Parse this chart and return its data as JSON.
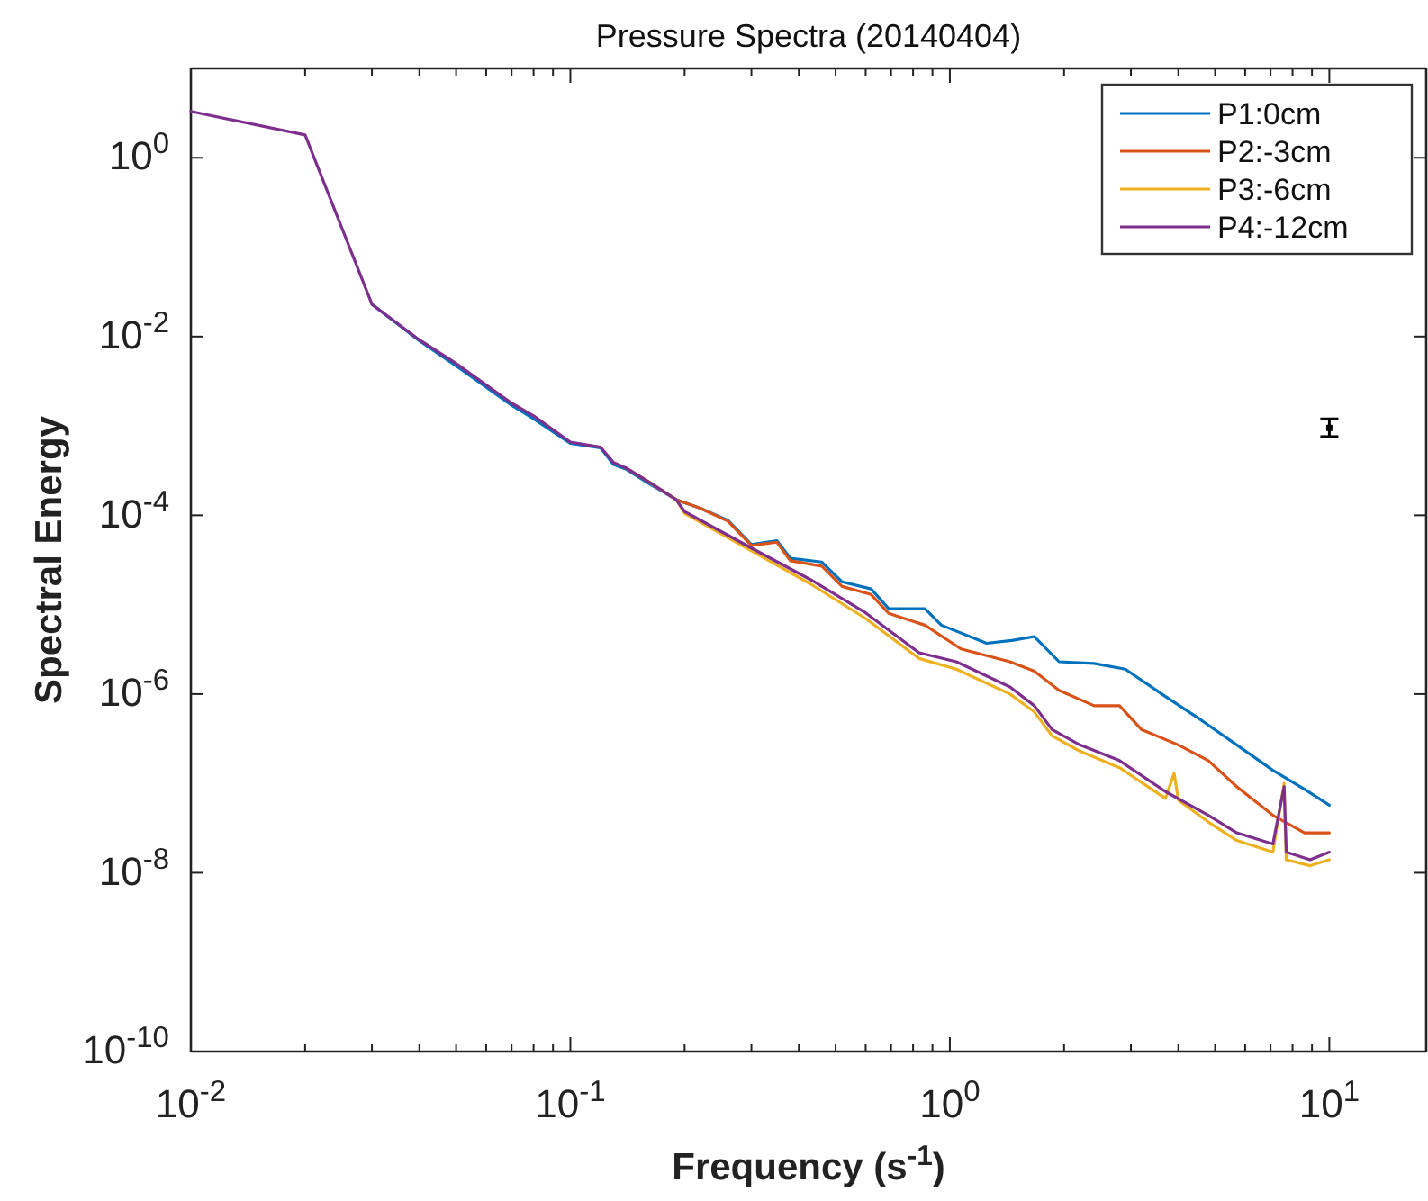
{
  "chart_data": {
    "type": "line",
    "title": "Pressure Spectra (20140404)",
    "xlabel": "Frequency (s$^{-1}$)",
    "ylabel": "Spectral Energy",
    "log": "xy",
    "xlim": [
      0.01,
      18
    ],
    "ylim": [
      1e-10,
      10
    ],
    "xticks": [
      {
        "value": 0.01,
        "label": "10$^{-2}$"
      },
      {
        "value": 0.02,
        "label": null
      },
      {
        "value": 0.03,
        "label": null
      },
      {
        "value": 0.04,
        "label": null
      },
      {
        "value": 0.05,
        "label": null
      },
      {
        "value": 0.06,
        "label": null
      },
      {
        "value": 0.07,
        "label": null
      },
      {
        "value": 0.08,
        "label": null
      },
      {
        "value": 0.09,
        "label": null
      },
      {
        "value": 0.1,
        "label": "10$^{-1}$"
      },
      {
        "value": 0.2,
        "label": null
      },
      {
        "value": 0.3,
        "label": null
      },
      {
        "value": 0.4,
        "label": null
      },
      {
        "value": 0.5,
        "label": null
      },
      {
        "value": 0.6,
        "label": null
      },
      {
        "value": 0.7,
        "label": null
      },
      {
        "value": 0.8,
        "label": null
      },
      {
        "value": 0.9,
        "label": null
      },
      {
        "value": 1,
        "label": "10$^{0}$"
      },
      {
        "value": 2,
        "label": null
      },
      {
        "value": 3,
        "label": null
      },
      {
        "value": 4,
        "label": null
      },
      {
        "value": 5,
        "label": null
      },
      {
        "value": 6,
        "label": null
      },
      {
        "value": 7,
        "label": null
      },
      {
        "value": 8,
        "label": null
      },
      {
        "value": 9,
        "label": null
      },
      {
        "value": 10,
        "label": "10$^{1}$"
      }
    ],
    "yticks": [
      {
        "value": 1e-10,
        "label": "10$^{-10}$"
      },
      {
        "value": 1e-08,
        "label": "10$^{-8}$"
      },
      {
        "value": 1e-06,
        "label": "10$^{-6}$"
      },
      {
        "value": 0.0001,
        "label": "10$^{-4}$"
      },
      {
        "value": 0.01,
        "label": "10$^{-2}$"
      },
      {
        "value": 1,
        "label": "10$^{0}$"
      }
    ],
    "legend": "top right",
    "grid": false,
    "series": [
      {
        "name": "P1:0cm",
        "color": "#0072bd",
        "x": [
          0.03,
          0.04,
          0.05,
          0.07,
          0.08,
          0.1,
          0.12,
          0.13,
          0.14,
          0.16,
          0.19,
          0.22,
          0.26,
          0.3,
          0.35,
          0.38,
          0.46,
          0.52,
          0.62,
          0.69,
          0.86,
          0.95,
          1.25,
          1.47,
          1.67,
          1.94,
          2.4,
          2.9,
          3.7,
          4.6,
          5.7,
          7.1,
          8.6,
          10
        ],
        "values": [
          0.023,
          0.009,
          0.0047,
          0.0017,
          0.0012,
          0.00064,
          0.00057,
          0.00037,
          0.00033,
          0.00023,
          0.00015,
          0.00012,
          8.8e-05,
          4.7e-05,
          5.2e-05,
          3.3e-05,
          3e-05,
          1.8e-05,
          1.5e-05,
          9e-06,
          9e-06,
          5.9e-06,
          3.7e-06,
          4e-06,
          4.4e-06,
          2.3e-06,
          2.2e-06,
          1.9e-06,
          9.4e-07,
          5.1e-07,
          2.7e-07,
          1.4e-07,
          8.6e-08,
          5.7e-08
        ]
      },
      {
        "name": "P2:-3cm",
        "color": "#d95319",
        "x": [
          0.14,
          0.16,
          0.19,
          0.22,
          0.26,
          0.3,
          0.35,
          0.38,
          0.46,
          0.52,
          0.62,
          0.69,
          0.86,
          1.07,
          1.44,
          1.67,
          1.94,
          2.4,
          2.8,
          3.2,
          4.0,
          4.8,
          5.7,
          7.1,
          8.6,
          10
        ],
        "values": [
          0.00034,
          0.00024,
          0.00015,
          0.00012,
          8.6e-05,
          4.6e-05,
          5e-05,
          3.1e-05,
          2.7e-05,
          1.6e-05,
          1.3e-05,
          8e-06,
          5.9e-06,
          3.2e-06,
          2.3e-06,
          1.8e-06,
          1.1e-06,
          7.4e-07,
          7.4e-07,
          4e-07,
          2.7e-07,
          1.8e-07,
          9.2e-08,
          4.4e-08,
          2.8e-08,
          2.8e-08
        ]
      },
      {
        "name": "P3:-6cm",
        "color": "#edb120",
        "x": [
          0.16,
          0.19,
          0.2,
          0.3,
          0.43,
          0.6,
          0.83,
          1.04,
          1.44,
          1.67,
          1.86,
          2.2,
          2.8,
          3.7,
          3.9,
          4.0,
          4.8,
          5.7,
          7.1,
          7.6,
          7.7,
          8.9,
          10
        ],
        "values": [
          0.00024,
          0.00015,
          0.000105,
          4e-05,
          1.7e-05,
          7e-06,
          2.5e-06,
          1.9e-06,
          1e-06,
          6.3e-07,
          3.4e-07,
          2.3e-07,
          1.5e-07,
          6.8e-08,
          1.3e-07,
          6.5e-08,
          3.7e-08,
          2.3e-08,
          1.7e-08,
          1e-07,
          1.4e-08,
          1.2e-08,
          1.4e-08
        ]
      },
      {
        "name": "P4:-12cm",
        "color": "#7e2f8e",
        "x": [
          0.01,
          0.02,
          0.03,
          0.04,
          0.05,
          0.07,
          0.08,
          0.1,
          0.12,
          0.13,
          0.14,
          0.16,
          0.19,
          0.2,
          0.3,
          0.43,
          0.6,
          0.83,
          1.04,
          1.44,
          1.67,
          1.86,
          2.2,
          2.8,
          3.7,
          4.8,
          5.7,
          7.1,
          7.6,
          7.7,
          8.9,
          10
        ],
        "values": [
          3.3,
          1.8,
          0.023,
          0.0092,
          0.005,
          0.0018,
          0.0013,
          0.00066,
          0.00058,
          0.00039,
          0.00034,
          0.00024,
          0.00015,
          0.00011,
          4.3e-05,
          1.9e-05,
          8.1e-06,
          2.9e-06,
          2.3e-06,
          1.2e-06,
          7.4e-07,
          4e-07,
          2.7e-07,
          1.8e-07,
          8.1e-08,
          4.4e-08,
          2.8e-08,
          2.1e-08,
          9.2e-08,
          1.7e-08,
          1.4e-08,
          1.7e-08
        ]
      },
      {
        "type": "scatter",
        "marker": "square",
        "color": "#000000",
        "x": [
          10
        ],
        "values": [
          0.00095
        ],
        "errors": [
          [
            0.00076,
            0.0012
          ]
        ]
      }
    ]
  }
}
